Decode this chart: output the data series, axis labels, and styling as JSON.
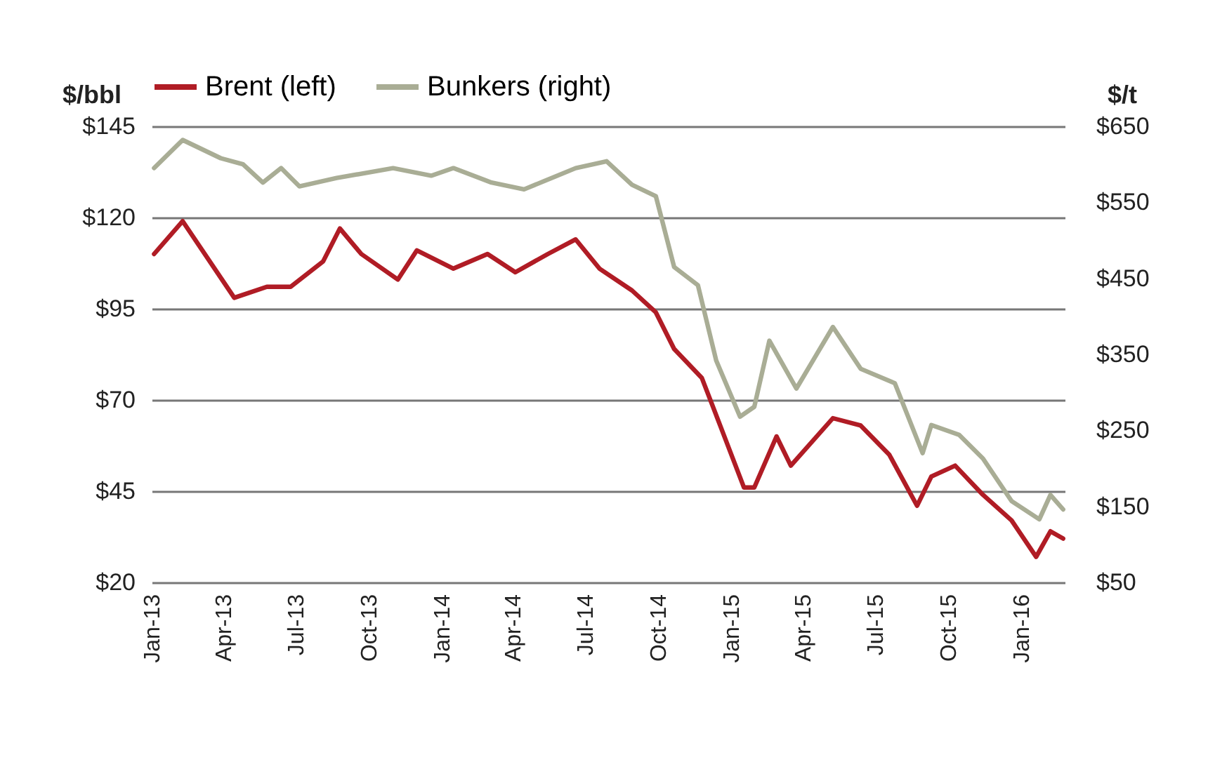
{
  "chart_data": {
    "type": "line",
    "ylabel": "$/bbl",
    "y2label": "$/t",
    "xlim": [
      "2013-01-01",
      "2016-02-25"
    ],
    "xticks": [
      {
        "value": "2013-01-01",
        "label": "Jan-13"
      },
      {
        "value": "2013-04-01",
        "label": "Apr-13"
      },
      {
        "value": "2013-07-01",
        "label": "Jul-13"
      },
      {
        "value": "2013-10-01",
        "label": "Oct-13"
      },
      {
        "value": "2014-01-01",
        "label": "Jan-14"
      },
      {
        "value": "2014-04-01",
        "label": "Apr-14"
      },
      {
        "value": "2014-07-01",
        "label": "Jul-14"
      },
      {
        "value": "2014-10-01",
        "label": "Oct-14"
      },
      {
        "value": "2015-01-01",
        "label": "Jan-15"
      },
      {
        "value": "2015-04-01",
        "label": "Apr-15"
      },
      {
        "value": "2015-07-01",
        "label": "Jul-15"
      },
      {
        "value": "2015-10-01",
        "label": "Oct-15"
      },
      {
        "value": "2016-01-01",
        "label": "Jan-16"
      }
    ],
    "ylim": [
      20,
      145
    ],
    "yticks": [
      {
        "value": 20,
        "label": "$20"
      },
      {
        "value": 45,
        "label": "$45"
      },
      {
        "value": 70,
        "label": "$70"
      },
      {
        "value": 95,
        "label": "$95"
      },
      {
        "value": 120,
        "label": "$120"
      },
      {
        "value": 145,
        "label": "$145"
      }
    ],
    "y2lim": [
      50,
      650
    ],
    "y2ticks": [
      {
        "value": 50,
        "label": "$50"
      },
      {
        "value": 150,
        "label": "$150"
      },
      {
        "value": 250,
        "label": "$250"
      },
      {
        "value": 350,
        "label": "$350"
      },
      {
        "value": 450,
        "label": "$450"
      },
      {
        "value": 550,
        "label": "$550"
      },
      {
        "value": 650,
        "label": "$650"
      }
    ],
    "grid": "y",
    "legend": "top",
    "line_style": "solid",
    "marker": "none",
    "series": [
      {
        "name": "Brent (left)",
        "color": "#b01c25",
        "x": [
          "2013-01-04",
          "2013-02-09",
          "2013-04-15",
          "2013-05-26",
          "2013-06-25",
          "2013-08-05",
          "2013-08-26",
          "2013-09-22",
          "2013-11-07",
          "2013-12-01",
          "2014-01-16",
          "2014-02-28",
          "2014-04-04",
          "2014-05-15",
          "2014-06-19",
          "2014-07-19",
          "2014-08-29",
          "2014-09-28",
          "2014-10-21",
          "2014-11-25",
          "2014-12-18",
          "2015-01-17",
          "2015-01-30",
          "2015-02-27",
          "2015-03-17",
          "2015-05-09",
          "2015-06-13",
          "2015-07-19",
          "2015-08-23",
          "2015-09-10",
          "2015-10-10",
          "2015-11-14",
          "2015-12-20",
          "2016-01-20",
          "2016-02-07",
          "2016-02-23"
        ],
        "values": [
          110,
          119,
          98,
          101,
          101,
          108,
          117,
          110,
          103,
          111,
          106,
          110,
          105,
          110,
          114,
          106,
          100,
          94,
          84,
          76,
          63,
          46,
          46,
          60,
          52,
          65,
          63,
          55,
          41,
          49,
          52,
          44,
          37,
          27,
          34,
          32
        ]
      },
      {
        "name": "Bunkers (right)",
        "axis": "y2",
        "color": "#a9ad95",
        "x": [
          "2013-01-04",
          "2013-02-09",
          "2013-03-29",
          "2013-04-26",
          "2013-05-21",
          "2013-06-13",
          "2013-07-06",
          "2013-08-22",
          "2013-11-01",
          "2013-12-19",
          "2014-01-16",
          "2014-03-05",
          "2014-04-15",
          "2014-06-19",
          "2014-07-28",
          "2014-08-29",
          "2014-09-28",
          "2014-10-21",
          "2014-11-20",
          "2014-12-13",
          "2015-01-12",
          "2015-01-30",
          "2015-02-18",
          "2015-03-24",
          "2015-05-09",
          "2015-06-13",
          "2015-07-26",
          "2015-08-30",
          "2015-09-10",
          "2015-10-15",
          "2015-11-14",
          "2015-12-20",
          "2016-01-24",
          "2016-02-07",
          "2016-02-23"
        ],
        "values": [
          595,
          632,
          608,
          600,
          576,
          595,
          571,
          582,
          595,
          585,
          595,
          576,
          567,
          595,
          604,
          573,
          558,
          465,
          441,
          342,
          268,
          281,
          368,
          305,
          386,
          331,
          312,
          220,
          257,
          244,
          213,
          157,
          133,
          165,
          146
        ]
      }
    ]
  }
}
